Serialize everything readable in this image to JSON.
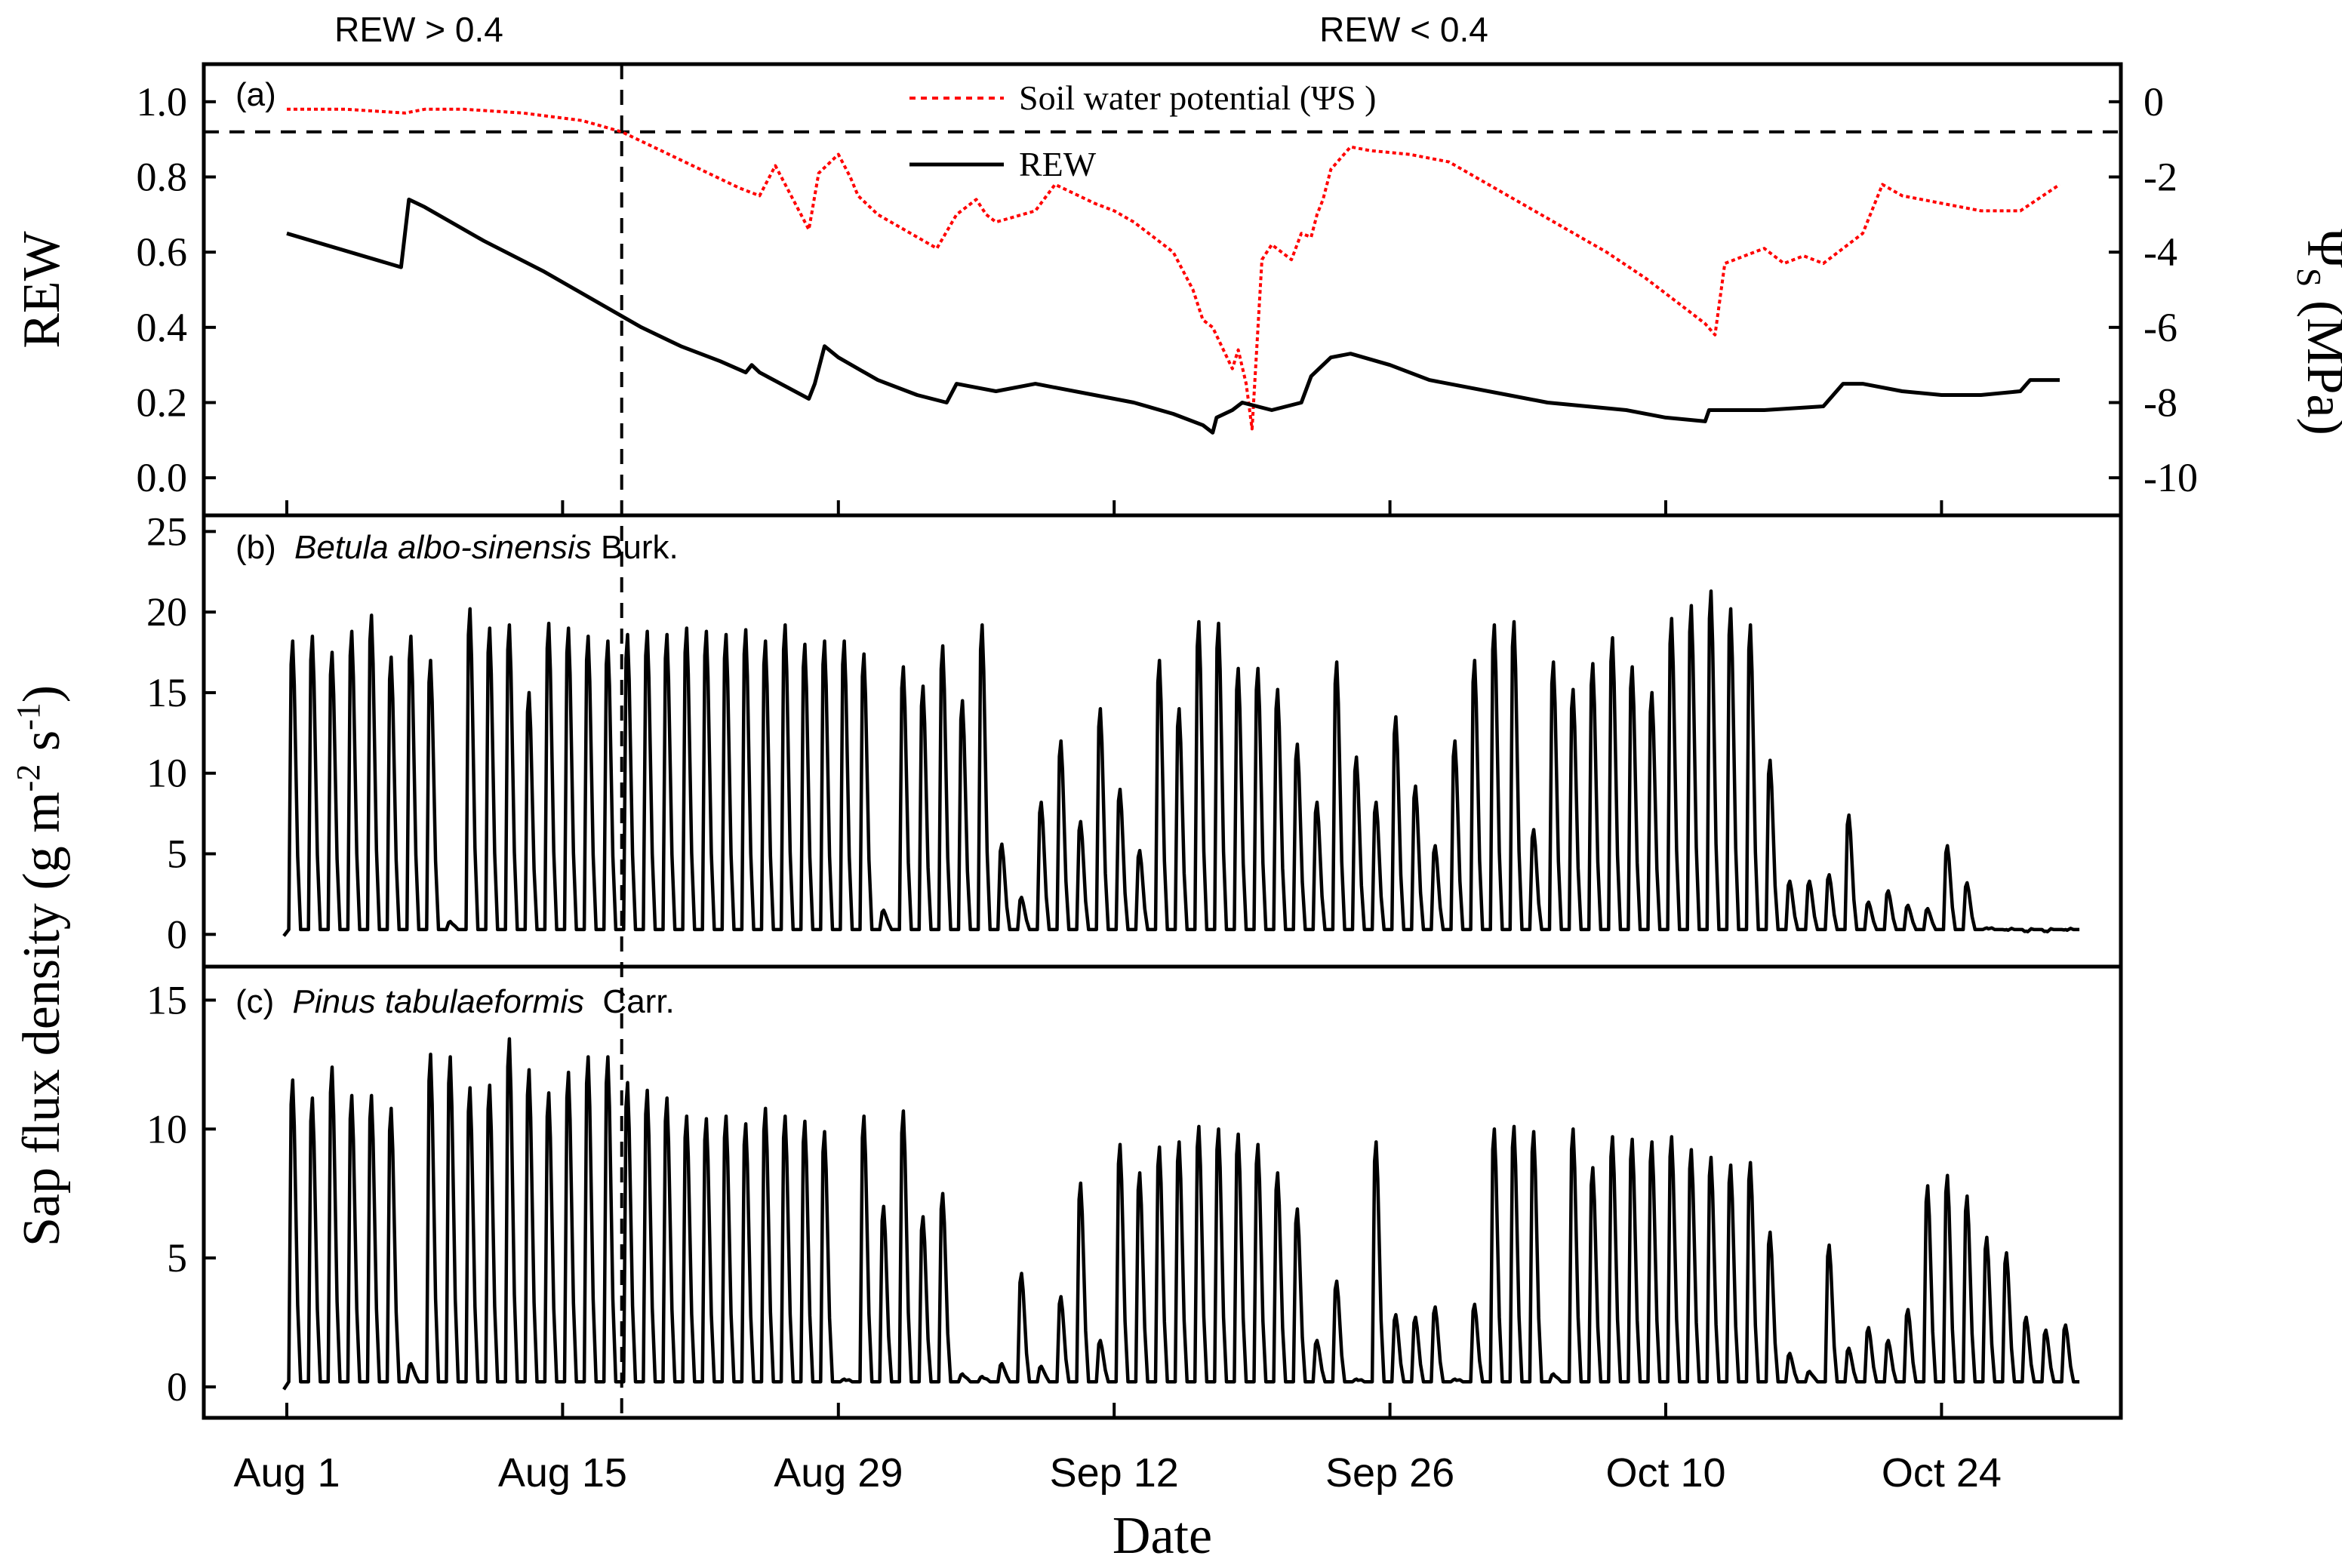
{
  "figure": {
    "top_labels": {
      "left": "REW > 0.4",
      "right": "REW < 0.4"
    },
    "xlabel": "Date",
    "x_ticks": [
      "Aug 1",
      "Aug 15",
      "Aug 29",
      "Sep 12",
      "Sep 26",
      "Oct 10",
      "Oct 24"
    ],
    "threshold_day": 17,
    "threshold_rew": 0.4
  },
  "chart_data": [
    {
      "id": "a",
      "type": "line",
      "panel_label": "(a)",
      "ylabel": "REW",
      "ylabel2": "ΨS (MPa)",
      "ylim": [
        -0.1,
        1.1
      ],
      "y_ticks": [
        0.0,
        0.2,
        0.4,
        0.6,
        0.8,
        1.0
      ],
      "y2lim": [
        -11,
        1
      ],
      "y2_ticks": [
        0,
        -2,
        -4,
        -6,
        -8,
        -10
      ],
      "legend": [
        "Soil water potential (ΨS )",
        "REW"
      ],
      "series": [
        {
          "name": "Soil water potential (ΨS )",
          "axis": "right",
          "color": "#ff0000",
          "style": "dotted",
          "x": [
            0,
            3,
            6,
            7,
            9,
            12,
            15,
            17,
            19,
            21,
            23,
            24,
            24.8,
            25.5,
            26.5,
            27,
            28,
            28.6,
            29,
            30,
            32,
            33,
            34,
            35,
            35.5,
            36,
            38,
            39,
            41,
            42,
            43,
            44,
            45,
            46,
            46.5,
            47,
            48,
            48.3,
            48.7,
            49,
            49.5,
            50,
            51,
            51.5,
            52,
            52.3,
            52.6,
            53,
            54,
            55,
            57,
            59,
            61,
            63,
            65,
            67,
            69,
            71,
            72,
            72.5,
            73,
            74,
            75,
            76,
            77,
            78,
            80,
            81,
            82,
            84,
            86,
            88,
            90
          ],
          "values": [
            -0.2,
            -0.2,
            -0.3,
            -0.2,
            -0.2,
            -0.3,
            -0.5,
            -0.8,
            -1.3,
            -1.8,
            -2.3,
            -2.5,
            -1.7,
            -2.4,
            -3.4,
            -1.9,
            -1.4,
            -2.0,
            -2.5,
            -3.0,
            -3.6,
            -3.9,
            -3.0,
            -2.6,
            -3.0,
            -3.2,
            -2.9,
            -2.2,
            -2.7,
            -2.9,
            -3.2,
            -3.6,
            -4.0,
            -5.0,
            -5.8,
            -6.0,
            -7.1,
            -6.6,
            -7.5,
            -8.7,
            -4.2,
            -3.8,
            -4.2,
            -3.5,
            -3.6,
            -3.0,
            -2.6,
            -1.8,
            -1.2,
            -1.3,
            -1.4,
            -1.6,
            -2.2,
            -2.8,
            -3.4,
            -4.0,
            -4.7,
            -5.5,
            -5.9,
            -6.2,
            -4.3,
            -4.1,
            -3.9,
            -4.3,
            -4.1,
            -4.3,
            -3.5,
            -2.2,
            -2.5,
            -2.7,
            -2.9,
            -2.9,
            -2.2
          ]
        },
        {
          "name": "REW",
          "axis": "left",
          "color": "#000000",
          "style": "solid",
          "x": [
            0,
            5.8,
            6.2,
            7,
            10,
            13,
            16,
            18,
            20,
            22,
            23.3,
            23.6,
            24,
            26.5,
            26.8,
            27.3,
            28,
            30,
            32,
            33.5,
            34,
            35,
            36,
            38,
            39,
            41,
            43,
            45,
            46.5,
            47,
            47.2,
            48,
            48.5,
            50,
            51.5,
            52,
            53,
            54,
            56,
            58,
            60,
            62,
            64,
            66,
            68,
            70,
            72,
            72.2,
            75,
            78,
            79,
            80,
            82,
            84,
            86,
            88,
            88.5,
            90
          ],
          "values": [
            0.65,
            0.56,
            0.74,
            0.72,
            0.63,
            0.55,
            0.46,
            0.4,
            0.35,
            0.31,
            0.28,
            0.3,
            0.28,
            0.21,
            0.25,
            0.35,
            0.32,
            0.26,
            0.22,
            0.2,
            0.25,
            0.24,
            0.23,
            0.25,
            0.24,
            0.22,
            0.2,
            0.17,
            0.14,
            0.12,
            0.16,
            0.18,
            0.2,
            0.18,
            0.2,
            0.27,
            0.32,
            0.33,
            0.3,
            0.26,
            0.24,
            0.22,
            0.2,
            0.19,
            0.18,
            0.16,
            0.15,
            0.18,
            0.18,
            0.19,
            0.25,
            0.25,
            0.23,
            0.22,
            0.22,
            0.23,
            0.26,
            0.26
          ]
        }
      ]
    },
    {
      "id": "b",
      "type": "line",
      "panel_label": "(b)",
      "species": "Betula albo-sinensis",
      "authority": " Burk.",
      "ylim": [
        -2,
        26
      ],
      "y_ticks": [
        0,
        5,
        10,
        15,
        20,
        25
      ],
      "series": [
        {
          "name": "Betula albo-sinensis Burk.",
          "color": "#000000",
          "baseline": 0.3,
          "daily_peak": [
            18.2,
            18.5,
            17.5,
            18.8,
            19.8,
            17.2,
            18.5,
            17.0,
            0.8,
            20.2,
            19.0,
            19.2,
            15.0,
            19.3,
            19.0,
            18.5,
            18.2,
            18.6,
            18.8,
            18.6,
            19.0,
            18.8,
            18.6,
            18.9,
            18.2,
            19.2,
            18.0,
            18.2,
            18.2,
            17.4,
            1.5,
            16.6,
            15.4,
            17.9,
            14.5,
            19.2,
            5.6,
            2.3,
            8.2,
            12.0,
            7.0,
            14.0,
            9.0,
            5.2,
            17.0,
            14.0,
            19.4,
            19.3,
            16.5,
            16.5,
            15.2,
            11.8,
            8.2,
            16.9,
            11.0,
            8.2,
            13.5,
            9.2,
            5.5,
            12.0,
            17.0,
            19.2,
            19.4,
            6.5,
            16.9,
            15.2,
            16.8,
            18.4,
            16.6,
            15.0,
            19.6,
            20.4,
            21.3,
            20.2,
            19.2,
            10.8,
            3.3,
            3.3,
            3.7,
            7.4,
            2.0,
            2.7,
            1.8,
            1.6,
            5.5,
            3.2,
            0.4,
            0.3,
            0.2,
            0.2,
            0.3
          ]
        }
      ]
    },
    {
      "id": "c",
      "type": "line",
      "panel_label": "(c)",
      "species": "Pinus tabulaeformis",
      "authority": "  Carr.",
      "ylim": [
        -1.2,
        16.3
      ],
      "y_ticks": [
        0,
        5,
        10,
        15
      ],
      "series": [
        {
          "name": "Pinus tabulaeformis Carr.",
          "color": "#000000",
          "baseline": 0.2,
          "daily_peak": [
            11.9,
            11.2,
            12.4,
            11.3,
            11.3,
            10.8,
            0.9,
            12.9,
            12.8,
            11.6,
            11.7,
            13.5,
            12.3,
            11.4,
            12.2,
            12.8,
            12.8,
            11.8,
            11.5,
            11.2,
            10.5,
            10.4,
            10.5,
            10.2,
            10.8,
            10.5,
            10.3,
            9.9,
            0.3,
            10.5,
            7.0,
            10.7,
            6.6,
            7.5,
            0.5,
            0.4,
            0.9,
            4.4,
            0.8,
            3.5,
            7.9,
            1.8,
            9.4,
            8.3,
            9.3,
            9.5,
            10.1,
            10.0,
            9.8,
            9.4,
            8.3,
            6.9,
            1.8,
            4.1,
            0.3,
            9.5,
            2.8,
            2.7,
            3.1,
            0.3,
            3.2,
            10.0,
            10.1,
            9.9,
            0.5,
            10.0,
            8.5,
            9.7,
            9.6,
            9.5,
            9.7,
            9.2,
            8.9,
            8.6,
            8.7,
            6.0,
            1.3,
            0.6,
            5.5,
            1.5,
            2.3,
            1.8,
            3.0,
            7.8,
            8.2,
            7.4,
            5.8,
            5.2,
            2.7,
            2.2,
            2.4
          ]
        }
      ]
    }
  ]
}
